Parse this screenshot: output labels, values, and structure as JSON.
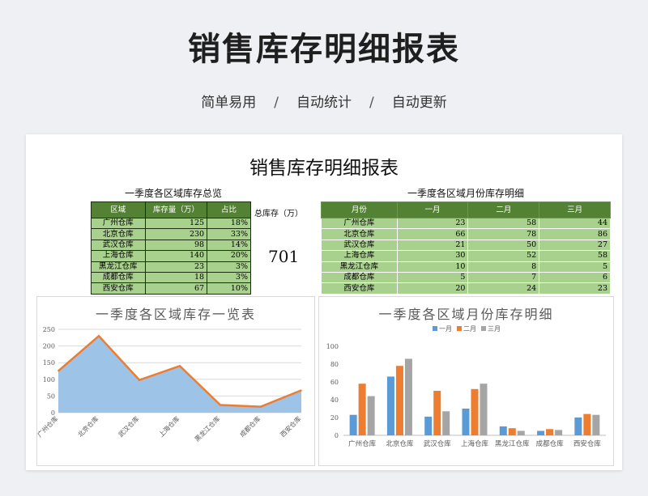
{
  "page": {
    "title": "销售库存明细报表",
    "tags": [
      "简单易用",
      "自动统计",
      "自动更新"
    ],
    "separator": "/"
  },
  "sheet": {
    "title": "销售库存明细报表",
    "table1": {
      "caption": "一季度各区域库存总览",
      "headers": [
        "区域",
        "库存量（万）",
        "占比"
      ],
      "rows": [
        [
          "广州仓库",
          "125",
          "18%"
        ],
        [
          "北京仓库",
          "230",
          "33%"
        ],
        [
          "武汉仓库",
          "98",
          "14%"
        ],
        [
          "上海仓库",
          "140",
          "20%"
        ],
        [
          "黑龙江仓库",
          "23",
          "3%"
        ],
        [
          "成都仓库",
          "18",
          "3%"
        ],
        [
          "西安仓库",
          "67",
          "10%"
        ]
      ],
      "total_label": "总库存（万）",
      "total_value": "701"
    },
    "table2": {
      "caption": "一季度各区域月份库存明细",
      "headers": [
        "月份",
        "一月",
        "二月",
        "三月"
      ],
      "rows": [
        [
          "广州仓库",
          "23",
          "58",
          "44"
        ],
        [
          "北京仓库",
          "66",
          "78",
          "86"
        ],
        [
          "武汉仓库",
          "21",
          "50",
          "27"
        ],
        [
          "上海仓库",
          "30",
          "52",
          "58"
        ],
        [
          "黑龙江仓库",
          "10",
          "8",
          "5"
        ],
        [
          "成都仓库",
          "5",
          "7",
          "6"
        ],
        [
          "西安仓库",
          "20",
          "24",
          "23"
        ]
      ]
    }
  },
  "chart_data": [
    {
      "type": "area",
      "title": "一季度各区域库存一览表",
      "categories": [
        "广州仓库",
        "北京仓库",
        "武汉仓库",
        "上海仓库",
        "黑龙江仓库",
        "成都仓库",
        "西安仓库"
      ],
      "values": [
        125,
        230,
        98,
        140,
        23,
        18,
        67
      ],
      "ylim": [
        0,
        250
      ],
      "yticks": [
        0,
        50,
        100,
        150,
        200,
        250
      ],
      "grid": true,
      "colors": {
        "fill": "#9dc3e6",
        "line": "#ed7d31"
      }
    },
    {
      "type": "bar",
      "title": "一季度各区域月份库存明细",
      "categories": [
        "广州仓库",
        "北京仓库",
        "武汉仓库",
        "上海仓库",
        "黑龙江仓库",
        "成都仓库",
        "西安仓库"
      ],
      "series": [
        {
          "name": "一月",
          "values": [
            23,
            66,
            21,
            30,
            10,
            5,
            20
          ],
          "color": "#5b9bd5"
        },
        {
          "name": "二月",
          "values": [
            58,
            78,
            50,
            52,
            8,
            7,
            24
          ],
          "color": "#ed7d31"
        },
        {
          "name": "三月",
          "values": [
            44,
            86,
            27,
            58,
            5,
            6,
            23
          ],
          "color": "#a5a5a5"
        }
      ],
      "ylim": [
        0,
        100
      ],
      "yticks": [
        0,
        20,
        40,
        60,
        80,
        100
      ],
      "legend": "top",
      "grid": false
    }
  ]
}
